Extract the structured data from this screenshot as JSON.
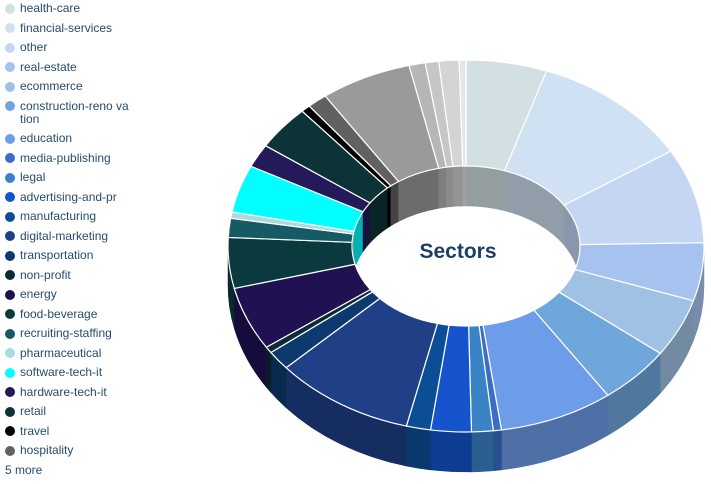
{
  "chart_data": {
    "type": "pie",
    "title": "Sectors",
    "series": [
      {
        "name": "health-care",
        "value": 6.0,
        "color": "#d3e0e3"
      },
      {
        "name": "financial-services",
        "value": 12.0,
        "color": "#cfe1f3"
      },
      {
        "name": "other",
        "value": 9.0,
        "color": "#c5d6f5"
      },
      {
        "name": "real-estate",
        "value": 5.5,
        "color": "#a6c3f0"
      },
      {
        "name": "ecommerce",
        "value": 5.5,
        "color": "#9fc1e3"
      },
      {
        "name": "construction-renovation",
        "value": 5.5,
        "color": "#6fa6db"
      },
      {
        "name": "education",
        "value": 8.5,
        "color": "#6d9ce8"
      },
      {
        "name": "media-publishing",
        "value": 0.6,
        "color": "#3a6ec6"
      },
      {
        "name": "legal",
        "value": 1.6,
        "color": "#3a83c7"
      },
      {
        "name": "advertising-and-pr",
        "value": 3.0,
        "color": "#1554cc"
      },
      {
        "name": "manufacturing",
        "value": 1.8,
        "color": "#0c4e96"
      },
      {
        "name": "digital-marketing",
        "value": 10.5,
        "color": "#1f3f87"
      },
      {
        "name": "transportation",
        "value": 1.8,
        "color": "#0c396e"
      },
      {
        "name": "non-profit",
        "value": 0.6,
        "color": "#0b2a36"
      },
      {
        "name": "energy",
        "value": 6.0,
        "color": "#1f1152"
      },
      {
        "name": "food-beverage",
        "value": 4.8,
        "color": "#0b3a3e"
      },
      {
        "name": "recruiting-staffing",
        "value": 1.8,
        "color": "#175a66"
      },
      {
        "name": "pharmaceutical",
        "value": 0.6,
        "color": "#a9dddd"
      },
      {
        "name": "software-tech-it",
        "value": 4.5,
        "color": "#00ffff"
      },
      {
        "name": "hardware-tech-it",
        "value": 2.2,
        "color": "#241a5a"
      },
      {
        "name": "retail",
        "value": 4.2,
        "color": "#0b3338"
      },
      {
        "name": "travel",
        "value": 0.7,
        "color": "#000000"
      },
      {
        "name": "hospitality",
        "value": 1.5,
        "color": "#616161"
      },
      {
        "name": "",
        "value": 6.8,
        "color": "#9a9a9a"
      },
      {
        "name": "",
        "value": 1.2,
        "color": "#b6b6b6"
      },
      {
        "name": "",
        "value": 1.0,
        "color": "#c6c6c6"
      },
      {
        "name": "",
        "value": 1.5,
        "color": "#d4d4d4"
      },
      {
        "name": "",
        "value": 0.5,
        "color": "#e6e6e6"
      }
    ],
    "legend": {
      "placement": "left",
      "labels": [
        "health-care",
        "financial-services",
        "other",
        "real-estate",
        "ecommerce",
        "construction-reno vation",
        "education",
        "media-publishing",
        "legal",
        "advertising-and-pr",
        "manufacturing",
        "digital-marketing",
        "transportation",
        "non-profit",
        "energy",
        "food-beverage",
        "recruiting-staffing",
        "pharmaceutical",
        "software-tech-it",
        "hardware-tech-it",
        "retail",
        "travel",
        "hospitality"
      ],
      "more_label": "5 more"
    }
  }
}
